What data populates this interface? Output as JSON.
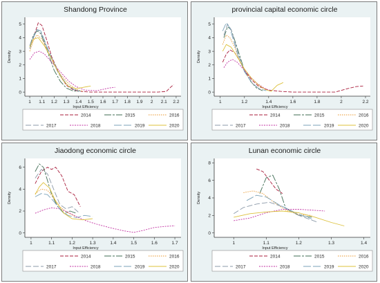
{
  "colors": {
    "2014": "#a81b3a",
    "2015": "#3d6b52",
    "2016": "#e8962a",
    "2017": "#8b99a8",
    "2018": "#c02fa0",
    "2019": "#7aa2b8",
    "2020": "#dcc03a"
  },
  "chart_data": [
    {
      "type": "line",
      "title": "Shandong Province",
      "xlabel": "Input Efficiency",
      "ylabel": "Density",
      "xlim": [
        0.96,
        2.24
      ],
      "ylim": [
        -0.3,
        5.5
      ],
      "xticks": [
        "1",
        "1.1",
        "1.2",
        "1.3",
        "1.4",
        "1.5",
        "1.6",
        "1.7",
        "1.8",
        "1.9",
        "2",
        "2.1",
        "2.2"
      ],
      "yticks": [
        "0",
        "1",
        "2",
        "3",
        "4",
        "5"
      ],
      "grid": false,
      "legend": "bottom",
      "series": [
        {
          "name": "2014",
          "x": [
            1.0,
            1.03,
            1.07,
            1.1,
            1.14,
            1.18,
            1.24,
            1.3,
            1.36,
            1.42,
            1.5,
            1.7,
            1.9,
            2.05,
            2.12,
            2.16,
            2.18
          ],
          "y": [
            3.2,
            4.0,
            5.1,
            4.9,
            3.8,
            2.6,
            1.4,
            0.5,
            0.15,
            0.05,
            0.0,
            0.0,
            0.0,
            0.0,
            0.05,
            0.4,
            0.55
          ]
        },
        {
          "name": "2015",
          "x": [
            1.0,
            1.03,
            1.06,
            1.09,
            1.12,
            1.16,
            1.2,
            1.25,
            1.3,
            1.35,
            1.4
          ],
          "y": [
            3.4,
            4.2,
            4.5,
            4.3,
            3.6,
            2.6,
            1.6,
            0.8,
            0.3,
            0.1,
            0.05
          ]
        },
        {
          "name": "2016",
          "x": [
            1.0,
            1.03,
            1.06,
            1.1,
            1.15,
            1.2,
            1.26,
            1.32,
            1.38,
            1.44
          ],
          "y": [
            3.0,
            3.8,
            4.2,
            3.9,
            3.0,
            2.0,
            1.2,
            0.6,
            0.2,
            0.05
          ]
        },
        {
          "name": "2017",
          "x": [
            1.0,
            1.03,
            1.06,
            1.09,
            1.13,
            1.18,
            1.24,
            1.3,
            1.36,
            1.42
          ],
          "y": [
            3.4,
            4.1,
            4.6,
            4.4,
            3.5,
            2.4,
            1.3,
            0.6,
            0.2,
            0.05
          ]
        },
        {
          "name": "2018",
          "x": [
            1.0,
            1.04,
            1.08,
            1.12,
            1.17,
            1.22,
            1.27,
            1.32,
            1.38,
            1.45,
            1.55,
            1.65,
            1.7
          ],
          "y": [
            2.4,
            2.9,
            3.0,
            2.8,
            2.3,
            1.8,
            1.3,
            0.8,
            0.4,
            0.15,
            0.1,
            0.3,
            0.35
          ]
        },
        {
          "name": "2019",
          "x": [
            1.0,
            1.03,
            1.06,
            1.09,
            1.13,
            1.18,
            1.24,
            1.3,
            1.36,
            1.42
          ],
          "y": [
            3.2,
            4.0,
            4.6,
            4.5,
            3.6,
            2.5,
            1.4,
            0.6,
            0.2,
            0.05
          ]
        },
        {
          "name": "2020",
          "x": [
            1.0,
            1.03,
            1.07,
            1.12,
            1.17,
            1.22,
            1.27,
            1.32,
            1.38,
            1.44,
            1.5
          ],
          "y": [
            3.3,
            3.9,
            4.0,
            3.4,
            2.6,
            1.7,
            0.9,
            0.4,
            0.25,
            0.35,
            0.45
          ]
        }
      ]
    },
    {
      "type": "line",
      "title": "provincial capital economic circle",
      "xlabel": "Input Efficiency",
      "ylabel": "Density",
      "xlim": [
        0.95,
        2.24
      ],
      "ylim": [
        -0.3,
        5.5
      ],
      "xticks": [
        "1",
        "1.2",
        "1.4",
        "1.6",
        "1.8",
        "2",
        "2.2"
      ],
      "yticks": [
        "0",
        "1",
        "2",
        "3",
        "4",
        "5"
      ],
      "grid": false,
      "legend": "bottom",
      "series": [
        {
          "name": "2014",
          "x": [
            1.02,
            1.05,
            1.08,
            1.12,
            1.16,
            1.2,
            1.26,
            1.32,
            1.4,
            1.5,
            1.6,
            1.8,
            1.95,
            2.05,
            2.12,
            2.18
          ],
          "y": [
            2.2,
            2.8,
            3.1,
            2.9,
            2.3,
            1.6,
            0.9,
            0.4,
            0.15,
            0.05,
            0.0,
            0.0,
            0.0,
            0.25,
            0.4,
            0.45
          ]
        },
        {
          "name": "2015",
          "x": [
            1.03,
            1.06,
            1.09,
            1.12,
            1.16,
            1.2,
            1.25,
            1.3,
            1.35
          ],
          "y": [
            4.0,
            4.8,
            4.6,
            3.8,
            2.7,
            1.6,
            0.8,
            0.3,
            0.1
          ]
        },
        {
          "name": "2016",
          "x": [
            1.02,
            1.05,
            1.08,
            1.12,
            1.16,
            1.21,
            1.27,
            1.33
          ],
          "y": [
            3.5,
            4.2,
            4.0,
            3.3,
            2.3,
            1.4,
            0.6,
            0.2
          ]
        },
        {
          "name": "2017",
          "x": [
            1.03,
            1.06,
            1.09,
            1.12,
            1.16,
            1.21,
            1.27,
            1.33
          ],
          "y": [
            4.2,
            5.0,
            4.6,
            3.7,
            2.5,
            1.4,
            0.6,
            0.2
          ]
        },
        {
          "name": "2018",
          "x": [
            1.03,
            1.06,
            1.1,
            1.14,
            1.19,
            1.25,
            1.31,
            1.37,
            1.42
          ],
          "y": [
            1.8,
            2.2,
            2.4,
            2.2,
            1.7,
            1.1,
            0.6,
            0.25,
            0.1
          ]
        },
        {
          "name": "2019",
          "x": [
            1.02,
            1.05,
            1.08,
            1.11,
            1.15,
            1.2,
            1.26,
            1.32,
            1.38
          ],
          "y": [
            4.5,
            5.1,
            4.7,
            3.8,
            2.6,
            1.5,
            0.7,
            0.25,
            0.1
          ]
        },
        {
          "name": "2020",
          "x": [
            1.02,
            1.05,
            1.09,
            1.14,
            1.2,
            1.26,
            1.32,
            1.37,
            1.42,
            1.47,
            1.52
          ],
          "y": [
            3.0,
            3.5,
            3.3,
            2.6,
            1.7,
            1.0,
            0.5,
            0.2,
            0.05,
            0.5,
            0.7
          ]
        }
      ]
    },
    {
      "type": "line",
      "title": "Jiaodong economic circle",
      "xlabel": "Input Efficiency",
      "ylabel": "Density",
      "xlim": [
        0.97,
        1.73
      ],
      "ylim": [
        -0.4,
        6.8
      ],
      "xticks": [
        "1",
        "1.1",
        "1.2",
        "1.3",
        "1.4",
        "1.5",
        "1.6",
        "1.7"
      ],
      "yticks": [
        "0",
        "2",
        "4",
        "6"
      ],
      "grid": false,
      "legend": "bottom",
      "series": [
        {
          "name": "2014",
          "x": [
            1.02,
            1.05,
            1.08,
            1.1,
            1.12,
            1.15,
            1.18,
            1.21,
            1.24
          ],
          "y": [
            4.5,
            5.6,
            6.0,
            5.8,
            6.0,
            5.2,
            3.8,
            3.5,
            2.4
          ]
        },
        {
          "name": "2015",
          "x": [
            1.02,
            1.04,
            1.06,
            1.08,
            1.1,
            1.13,
            1.16,
            1.19,
            1.22
          ],
          "y": [
            5.6,
            6.3,
            6.0,
            4.8,
            3.5,
            2.4,
            1.8,
            2.0,
            1.8
          ]
        },
        {
          "name": "2016",
          "x": [
            1.02,
            1.05,
            1.08,
            1.11,
            1.14,
            1.18,
            1.22
          ],
          "y": [
            3.6,
            4.0,
            3.9,
            3.2,
            2.4,
            1.8,
            1.5
          ]
        },
        {
          "name": "2017",
          "x": [
            1.02,
            1.05,
            1.08,
            1.11,
            1.14,
            1.17,
            1.2,
            1.23
          ],
          "y": [
            5.0,
            5.8,
            5.4,
            4.0,
            2.6,
            2.2,
            2.4,
            1.9
          ]
        },
        {
          "name": "2018",
          "x": [
            1.02,
            1.06,
            1.1,
            1.14,
            1.18,
            1.22,
            1.27,
            1.32,
            1.38,
            1.45,
            1.5,
            1.55,
            1.6,
            1.65,
            1.7
          ],
          "y": [
            1.8,
            2.1,
            2.3,
            2.2,
            1.9,
            1.5,
            1.1,
            0.8,
            0.5,
            0.2,
            0.05,
            0.25,
            0.5,
            0.6,
            0.65
          ]
        },
        {
          "name": "2019",
          "x": [
            1.02,
            1.05,
            1.08,
            1.11,
            1.14,
            1.18,
            1.22,
            1.26,
            1.3
          ],
          "y": [
            3.3,
            3.6,
            3.5,
            2.9,
            2.2,
            1.6,
            1.4,
            1.6,
            1.5
          ]
        },
        {
          "name": "2020",
          "x": [
            1.02,
            1.04,
            1.06,
            1.09,
            1.12,
            1.16,
            1.2,
            1.25,
            1.3
          ],
          "y": [
            3.5,
            4.2,
            4.6,
            4.1,
            2.9,
            1.8,
            1.3,
            1.2,
            1.3
          ]
        }
      ]
    },
    {
      "type": "line",
      "title": "Lunan economic circle",
      "xlabel": "Input Efficiency",
      "ylabel": "Density",
      "xlim": [
        0.94,
        1.42
      ],
      "ylim": [
        -0.5,
        8.5
      ],
      "xticks": [
        "1",
        "1.1",
        "1.2",
        "1.3",
        "1.4"
      ],
      "yticks": [
        "0",
        "2",
        "4",
        "6",
        "8"
      ],
      "grid": false,
      "legend": "bottom",
      "series": [
        {
          "name": "2014",
          "x": [
            1.07,
            1.09,
            1.11,
            1.13,
            1.15
          ],
          "y": [
            7.3,
            7.0,
            6.0,
            5.0,
            4.5
          ]
        },
        {
          "name": "2015",
          "x": [
            1.08,
            1.1,
            1.12,
            1.14,
            1.16,
            1.2,
            1.24
          ],
          "y": [
            4.5,
            6.3,
            6.6,
            5.0,
            2.8,
            2.0,
            1.8
          ]
        },
        {
          "name": "2016",
          "x": [
            1.03,
            1.06,
            1.09,
            1.12,
            1.16,
            1.2,
            1.24
          ],
          "y": [
            4.6,
            4.8,
            4.5,
            3.6,
            2.6,
            2.1,
            2.0
          ]
        },
        {
          "name": "2017",
          "x": [
            1.0,
            1.03,
            1.07,
            1.11,
            1.15,
            1.2,
            1.26
          ],
          "y": [
            2.2,
            2.9,
            3.3,
            3.5,
            3.0,
            2.0,
            1.2
          ]
        },
        {
          "name": "2018",
          "x": [
            1.0,
            1.05,
            1.1,
            1.15,
            1.2,
            1.24,
            1.28
          ],
          "y": [
            1.4,
            1.7,
            2.3,
            2.7,
            2.7,
            2.6,
            2.5
          ]
        },
        {
          "name": "2019",
          "x": [
            1.04,
            1.07,
            1.1,
            1.14,
            1.19,
            1.24
          ],
          "y": [
            3.7,
            4.3,
            4.1,
            3.2,
            2.3,
            1.6
          ]
        },
        {
          "name": "2020",
          "x": [
            1.0,
            1.05,
            1.1,
            1.15,
            1.2,
            1.25,
            1.3,
            1.34
          ],
          "y": [
            1.8,
            2.2,
            2.4,
            2.5,
            2.3,
            1.8,
            1.2,
            0.8
          ]
        }
      ]
    }
  ]
}
